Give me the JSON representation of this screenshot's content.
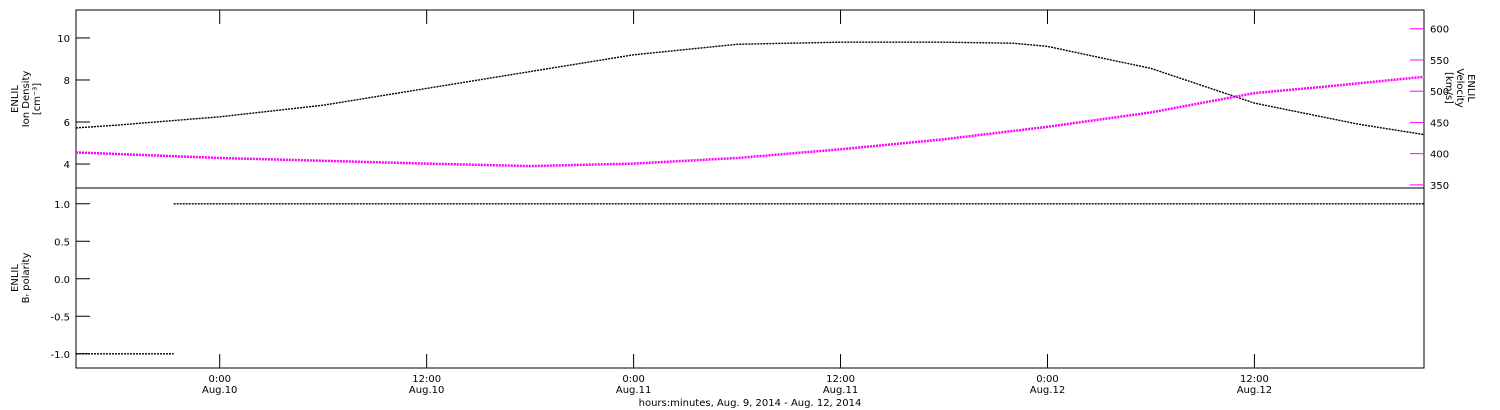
{
  "chart_data": [
    {
      "type": "line",
      "ylabel": [
        "ENLIL",
        "Ion Density",
        "[cm⁻³]"
      ],
      "y2label": [
        "ENLIL",
        "Velocity",
        "[km/s]"
      ],
      "xlim": [
        "2014-08-09T15:40",
        "2014-08-12T21:50"
      ],
      "ylim": [
        2.86,
        11.33
      ],
      "yticks": [
        4,
        6,
        8,
        10
      ],
      "y2lim": [
        345,
        630
      ],
      "y2ticks": [
        350,
        400,
        450,
        500,
        550,
        600
      ],
      "y2color": "#ff00ff",
      "series": [
        {
          "name": "Ion Density",
          "color": "#000000",
          "x": [
            "2014-08-09T15:40",
            "2014-08-09T18:00",
            "2014-08-10T00:00",
            "2014-08-10T06:00",
            "2014-08-10T12:00",
            "2014-08-10T18:00",
            "2014-08-11T00:00",
            "2014-08-11T06:00",
            "2014-08-11T09:00",
            "2014-08-11T12:00",
            "2014-08-11T18:00",
            "2014-08-11T22:00",
            "2014-08-12T00:00",
            "2014-08-12T06:00",
            "2014-08-12T12:00",
            "2014-08-12T18:00",
            "2014-08-12T21:50"
          ],
          "values": [
            5.72,
            5.85,
            6.25,
            6.8,
            7.6,
            8.4,
            9.2,
            9.7,
            9.75,
            9.8,
            9.8,
            9.75,
            9.6,
            8.55,
            6.9,
            5.9,
            5.4
          ]
        },
        {
          "name": "Velocity",
          "color": "#ff00ff",
          "axis": "y2",
          "x": [
            "2014-08-09T15:40",
            "2014-08-10T00:00",
            "2014-08-10T12:00",
            "2014-08-10T18:00",
            "2014-08-11T00:00",
            "2014-08-11T06:00",
            "2014-08-11T12:00",
            "2014-08-11T18:00",
            "2014-08-12T00:00",
            "2014-08-12T06:00",
            "2014-08-12T12:00",
            "2014-08-12T16:00",
            "2014-08-12T21:50"
          ],
          "values": [
            402,
            393,
            384,
            380,
            384,
            393,
            407,
            423,
            443,
            466,
            497,
            507,
            523
          ]
        }
      ]
    },
    {
      "type": "line",
      "ylabel": [
        "ENLIL",
        "Bᵣ polarity"
      ],
      "xlabel": "hours:minutes, Aug.  9, 2014 - Aug. 12, 2014",
      "xlim": [
        "2014-08-09T15:40",
        "2014-08-12T21:50"
      ],
      "xticks": [
        {
          "value": "2014-08-10T00:00",
          "label": [
            "0:00",
            "Aug.10"
          ]
        },
        {
          "value": "2014-08-10T12:00",
          "label": [
            "12:00",
            "Aug.10"
          ]
        },
        {
          "value": "2014-08-11T00:00",
          "label": [
            "0:00",
            "Aug.11"
          ]
        },
        {
          "value": "2014-08-11T12:00",
          "label": [
            "12:00",
            "Aug.11"
          ]
        },
        {
          "value": "2014-08-12T00:00",
          "label": [
            "0:00",
            "Aug.12"
          ]
        },
        {
          "value": "2014-08-12T12:00",
          "label": [
            "12:00",
            "Aug.12"
          ]
        }
      ],
      "ylim": [
        -1.19,
        1.21
      ],
      "yticks": [
        {
          "value": -1,
          "label": "-1.0"
        },
        {
          "value": -0.5,
          "label": "-0.5"
        },
        {
          "value": 0,
          "label": "0.0"
        },
        {
          "value": 0.5,
          "label": "0.5"
        },
        {
          "value": 1,
          "label": "1.0"
        }
      ],
      "series": [
        {
          "name": "Br polarity",
          "color": "#000000",
          "x": [
            "2014-08-09T15:40",
            "2014-08-09T21:20",
            "2014-08-09T21:20",
            "2014-08-09T21:20",
            "2014-08-12T21:50"
          ],
          "values": [
            -1,
            -1,
            null,
            1,
            1
          ]
        }
      ]
    }
  ]
}
